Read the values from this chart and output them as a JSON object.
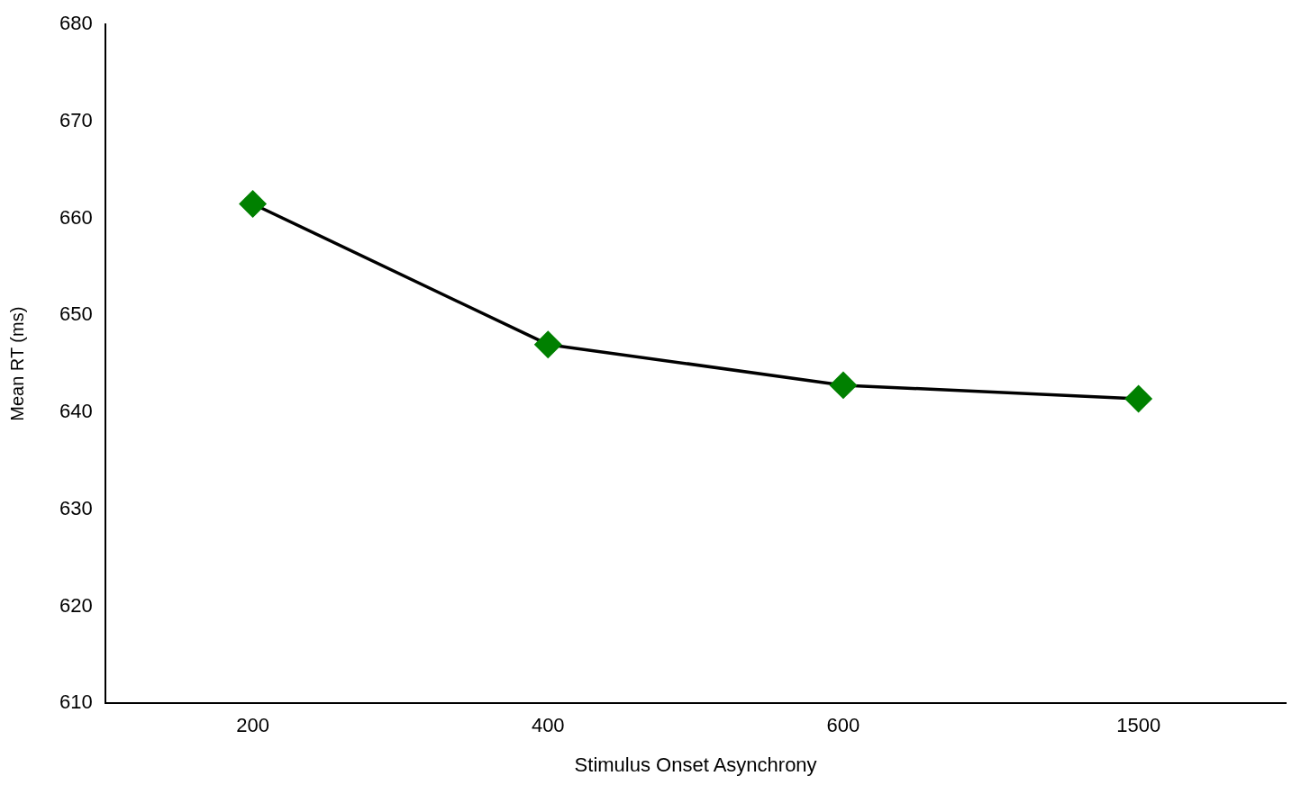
{
  "chart_data": {
    "type": "line",
    "xlabel": "Stimulus Onset Asynchrony",
    "ylabel": "Mean RT (ms)",
    "categories": [
      "200",
      "400",
      "600",
      "1500"
    ],
    "series": [
      {
        "color": "#000000",
        "colors": [
          "#008000",
          "#008000",
          "#008000",
          "#008000"
        ],
        "values": [
          661.5,
          647.0,
          642.8,
          641.4
        ]
      }
    ],
    "ylim": [
      610,
      680
    ],
    "yticks": [
      610,
      620,
      630,
      640,
      650,
      660,
      670,
      680
    ],
    "grid": false,
    "legend": false,
    "marker": "diamond",
    "line_style": "solid"
  }
}
